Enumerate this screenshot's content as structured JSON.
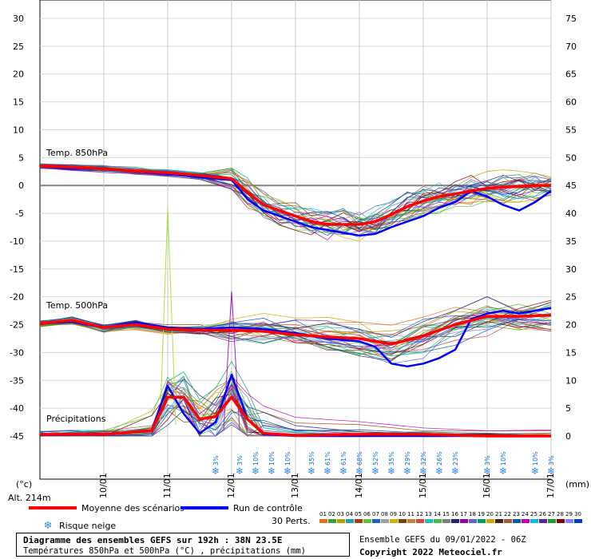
{
  "chart_data": {
    "type": "line",
    "left_axis": {
      "unit": "(°c)",
      "ticks": [
        30,
        25,
        20,
        15,
        10,
        5,
        0,
        -5,
        -10,
        -15,
        -20,
        -25,
        -30,
        -35,
        -40,
        -45
      ],
      "range": [
        -45,
        30
      ]
    },
    "right_axis": {
      "unit": "(mm)",
      "ticks": [
        75,
        70,
        65,
        60,
        55,
        50,
        45,
        40,
        35,
        30,
        25,
        20,
        15,
        10,
        5,
        0
      ],
      "range": [
        0,
        75
      ]
    },
    "x_labels": [
      "10/01",
      "11/01",
      "12/01",
      "13/01",
      "14/01",
      "15/01",
      "16/01",
      "17/01"
    ],
    "x_range": [
      0,
      64
    ],
    "x_label_positions": [
      8,
      16,
      24,
      32,
      40,
      48,
      56,
      64
    ],
    "x_units": "3-hour steps from 09/01 06Z",
    "annotations": {
      "t850": "Temp. 850hPa",
      "t500": "Temp. 500hPa",
      "precip": "Précipitations",
      "altitude": "Alt. 214m"
    },
    "series_t850_mean": {
      "name": "Moyenne des scénarios",
      "color": "#ff0000",
      "x": [
        0,
        4,
        8,
        12,
        16,
        20,
        24,
        26,
        28,
        30,
        32,
        34,
        36,
        38,
        40,
        42,
        44,
        46,
        48,
        50,
        52,
        54,
        56,
        58,
        60,
        62,
        64
      ],
      "y": [
        3.5,
        3.3,
        3,
        2.6,
        2.3,
        1.8,
        1.2,
        -1.2,
        -3.5,
        -4.5,
        -5.5,
        -6.5,
        -7,
        -7,
        -7,
        -6.5,
        -5.2,
        -3.8,
        -2.8,
        -2,
        -1.5,
        -1,
        -0.5,
        -0.3,
        -0.2,
        0,
        0
      ]
    },
    "series_t850_control": {
      "name": "Run de contrôle",
      "color": "#0000ff",
      "x": [
        0,
        4,
        8,
        12,
        16,
        20,
        24,
        26,
        28,
        30,
        32,
        34,
        36,
        38,
        40,
        42,
        44,
        46,
        48,
        50,
        52,
        54,
        56,
        58,
        60,
        62,
        64
      ],
      "y": [
        3.5,
        3,
        3,
        2.5,
        2,
        1.5,
        1,
        -2.5,
        -4.5,
        -5.5,
        -6.5,
        -7.5,
        -8,
        -8.5,
        -9,
        -8.7,
        -7.5,
        -6.5,
        -5.5,
        -4,
        -3,
        -1,
        -2,
        -3.5,
        -4.5,
        -3,
        -1
      ]
    },
    "series_t500_mean": {
      "name": "Moyenne des scénarios",
      "color": "#ff0000",
      "x": [
        0,
        4,
        8,
        12,
        16,
        20,
        24,
        28,
        32,
        36,
        40,
        44,
        48,
        52,
        56,
        60,
        64
      ],
      "y": [
        -24.8,
        -24.2,
        -25.5,
        -25,
        -25.8,
        -26,
        -26,
        -26.2,
        -26.8,
        -27.2,
        -27.5,
        -28.5,
        -27,
        -25,
        -23.5,
        -23.5,
        -23.3
      ]
    },
    "series_t500_control": {
      "name": "Run de contrôle",
      "color": "#0000ff",
      "x": [
        0,
        4,
        8,
        12,
        16,
        20,
        24,
        28,
        32,
        36,
        40,
        42,
        44,
        46,
        48,
        50,
        52,
        54,
        56,
        58,
        60,
        62,
        64
      ],
      "y": [
        -24.8,
        -24.5,
        -25.5,
        -24.6,
        -25.5,
        -25.8,
        -25.5,
        -25.8,
        -26.5,
        -27.5,
        -28,
        -29,
        -32,
        -32.5,
        -32,
        -31,
        -29.5,
        -24,
        -23,
        -22.5,
        -23,
        -22.5,
        -22
      ]
    },
    "series_precip_mean": {
      "name": "Moyenne des scénarios",
      "color": "#ff0000",
      "x": [
        0,
        4,
        8,
        14,
        16,
        18,
        20,
        22,
        24,
        26,
        28,
        32,
        40,
        48,
        56,
        64
      ],
      "y": [
        0.3,
        0.3,
        0.3,
        1.0,
        7.0,
        7.0,
        3.0,
        3.5,
        7.0,
        3.0,
        0.5,
        0.1,
        0.3,
        0.3,
        0,
        0
      ]
    },
    "series_precip_control": {
      "name": "Run de contrôle",
      "color": "#0000ff",
      "x": [
        0,
        8,
        14,
        16,
        18,
        20,
        22,
        24,
        26,
        28,
        32,
        64
      ],
      "y": [
        0.2,
        0.2,
        1.0,
        9.0,
        4.0,
        0.5,
        2.5,
        11.0,
        3.0,
        0.3,
        0,
        0
      ]
    },
    "snow_risk": {
      "legend": "Risque neige",
      "points": [
        {
          "x": 22,
          "pct": "3%"
        },
        {
          "x": 25,
          "pct": "3%"
        },
        {
          "x": 27,
          "pct": "10%"
        },
        {
          "x": 29,
          "pct": "10%"
        },
        {
          "x": 31,
          "pct": "10%"
        },
        {
          "x": 34,
          "pct": "35%"
        },
        {
          "x": 36,
          "pct": "61%"
        },
        {
          "x": 38,
          "pct": "61%"
        },
        {
          "x": 40,
          "pct": "68%"
        },
        {
          "x": 42,
          "pct": "52%"
        },
        {
          "x": 44,
          "pct": "35%"
        },
        {
          "x": 46,
          "pct": "29%"
        },
        {
          "x": 48,
          "pct": "32%"
        },
        {
          "x": 50,
          "pct": "26%"
        },
        {
          "x": 52,
          "pct": "23%"
        },
        {
          "x": 56,
          "pct": "3%"
        },
        {
          "x": 58,
          "pct": "10%"
        },
        {
          "x": 62,
          "pct": "10%"
        },
        {
          "x": 64,
          "pct": "3%"
        }
      ]
    },
    "legend": {
      "mean": "Moyenne des scénarios",
      "control": "Run de contrôle",
      "snow": "Risque neige",
      "perts": "30 Perts.",
      "pert_labels": [
        "01",
        "02",
        "03",
        "04",
        "05",
        "06",
        "07",
        "08",
        "09",
        "10",
        "11",
        "12",
        "13",
        "14",
        "15",
        "16",
        "17",
        "18",
        "19",
        "20",
        "21",
        "22",
        "23",
        "24",
        "25",
        "26",
        "27",
        "28",
        "29",
        "30"
      ],
      "pert_colors": [
        "#e07020",
        "#40a040",
        "#c0a000",
        "#20a0c0",
        "#a04010",
        "#60c040",
        "#2060c0",
        "#a0a0a0",
        "#d0b000",
        "#804000",
        "#c08040",
        "#e04040",
        "#20c0c0",
        "#40c040",
        "#808080",
        "#202080",
        "#a000a0",
        "#6060e0",
        "#00a060",
        "#e0a000",
        "#402020",
        "#a06030",
        "#0060a0",
        "#c000c0",
        "#00c0e0",
        "#6020a0",
        "#20a020",
        "#800000",
        "#8080ff",
        "#0040c0"
      ]
    }
  },
  "footer": {
    "title": "Diagramme des ensembles GEFS sur 192h : 38N 23.5E",
    "subtitle": "Températures 850hPa et 500hPa (°C) , précipitations (mm)",
    "run": "Ensemble GEFS du 09/01/2022 - 06Z",
    "copyright": "Copyright 2022 Meteociel.fr"
  }
}
